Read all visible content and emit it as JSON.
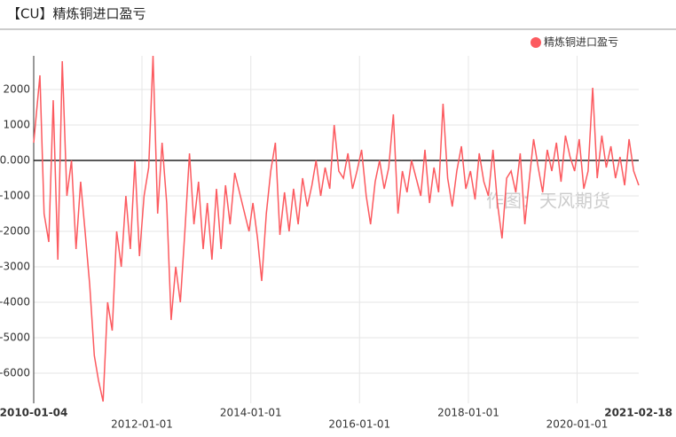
{
  "chart_data": {
    "type": "line",
    "title": "【CU】精炼铜进口盈亏",
    "watermark": "作图：天风期货",
    "legend": "top-right",
    "grid": true,
    "ylim": [
      -6850,
      2950
    ],
    "yticks": [
      -6000,
      -5000,
      -4000,
      -3000,
      -2000,
      -1000,
      {
        "value": 0,
        "label": "0.000"
      },
      1000,
      2000
    ],
    "xlim": [
      "2010-01-04",
      "2021-02-18"
    ],
    "xticks": [
      "2010-01-04",
      "2012-01-01",
      "2014-01-01",
      "2016-01-01",
      "2018-01-01",
      "2020-01-01",
      "2021-02-18"
    ],
    "x": [
      "2010-01-04",
      "2010-02-15",
      "2010-03-15",
      "2010-04-15",
      "2010-05-15",
      "2010-06-15",
      "2010-07-15",
      "2010-08-15",
      "2010-09-15",
      "2010-10-15",
      "2010-11-15",
      "2010-12-15",
      "2011-01-15",
      "2011-02-15",
      "2011-03-15",
      "2011-04-15",
      "2011-05-15",
      "2011-06-15",
      "2011-07-15",
      "2011-08-15",
      "2011-09-15",
      "2011-10-15",
      "2011-11-15",
      "2011-12-15",
      "2012-01-15",
      "2012-02-15",
      "2012-03-15",
      "2012-04-15",
      "2012-05-15",
      "2012-06-15",
      "2012-07-15",
      "2012-08-15",
      "2012-09-15",
      "2012-10-15",
      "2012-11-15",
      "2012-12-15",
      "2013-01-15",
      "2013-02-15",
      "2013-03-15",
      "2013-04-15",
      "2013-05-15",
      "2013-06-15",
      "2013-07-15",
      "2013-08-15",
      "2013-09-15",
      "2013-12-20",
      "2014-01-15",
      "2014-02-15",
      "2014-03-15",
      "2014-04-15",
      "2014-05-15",
      "2014-06-15",
      "2014-07-15",
      "2014-08-15",
      "2014-09-15",
      "2014-10-15",
      "2014-11-15",
      "2014-12-15",
      "2015-01-15",
      "2015-02-15",
      "2015-03-15",
      "2015-04-15",
      "2015-05-15",
      "2015-06-15",
      "2015-07-15",
      "2015-08-15",
      "2015-09-15",
      "2015-10-15",
      "2015-11-15",
      "2015-12-15",
      "2016-01-15",
      "2016-02-15",
      "2016-03-15",
      "2016-04-15",
      "2016-05-15",
      "2016-06-15",
      "2016-07-15",
      "2016-08-15",
      "2016-09-15",
      "2016-10-15",
      "2016-11-15",
      "2016-12-15",
      "2017-01-15",
      "2017-02-15",
      "2017-03-15",
      "2017-04-15",
      "2017-05-15",
      "2017-06-15",
      "2017-07-15",
      "2017-08-15",
      "2017-09-15",
      "2017-10-15",
      "2017-11-15",
      "2017-12-15",
      "2018-01-15",
      "2018-02-15",
      "2018-03-15",
      "2018-04-15",
      "2018-05-15",
      "2018-06-15",
      "2018-07-15",
      "2018-08-15",
      "2018-09-15",
      "2018-10-15",
      "2018-11-15",
      "2018-12-15",
      "2019-01-15",
      "2019-02-15",
      "2019-03-15",
      "2019-04-15",
      "2019-05-15",
      "2019-06-15",
      "2019-07-15",
      "2019-08-15",
      "2019-09-15",
      "2019-10-15",
      "2019-11-15",
      "2019-12-15",
      "2020-01-15",
      "2020-02-15",
      "2020-03-15",
      "2020-04-15",
      "2020-05-15",
      "2020-06-15",
      "2020-07-15",
      "2020-08-15",
      "2020-09-15",
      "2020-10-15",
      "2020-11-15",
      "2020-12-15",
      "2021-01-15",
      "2021-02-18"
    ],
    "series": [
      {
        "name": "精炼铜进口盈亏",
        "color": "#fc5a5f",
        "values": [
          500,
          2400,
          -1500,
          -2300,
          1700,
          -2800,
          2800,
          -1000,
          0,
          -2500,
          -600,
          -2000,
          -3500,
          -5500,
          -6200,
          -6800,
          -4000,
          -4800,
          -2000,
          -3000,
          -1000,
          -2500,
          0,
          -2700,
          -1000,
          -200,
          2950,
          -1500,
          500,
          -1200,
          -4500,
          -3000,
          -4000,
          -2000,
          200,
          -1800,
          -600,
          -2500,
          -1200,
          -2800,
          -800,
          -2500,
          -700,
          -1800,
          -350,
          -2000,
          -1200,
          -2200,
          -3400,
          -1500,
          -300,
          500,
          -2100,
          -900,
          -2000,
          -800,
          -1800,
          -500,
          -1300,
          -700,
          0,
          -1000,
          -200,
          -800,
          1000,
          -300,
          -500,
          200,
          -800,
          -300,
          300,
          -1000,
          -1800,
          -600,
          0,
          -800,
          -200,
          1300,
          -1500,
          -300,
          -900,
          0,
          -500,
          -1000,
          300,
          -1200,
          -200,
          -900,
          1600,
          -500,
          -1300,
          -300,
          400,
          -800,
          -300,
          -1100,
          200,
          -600,
          -1000,
          300,
          -1200,
          -2200,
          -500,
          -300,
          -900,
          200,
          -1800,
          -500,
          600,
          -200,
          -900,
          300,
          -300,
          500,
          -600,
          700,
          100,
          -300,
          600,
          -800,
          -300,
          2050,
          -500,
          700,
          -200,
          400,
          -500,
          100,
          -700,
          600,
          -300,
          -700
        ]
      }
    ]
  }
}
